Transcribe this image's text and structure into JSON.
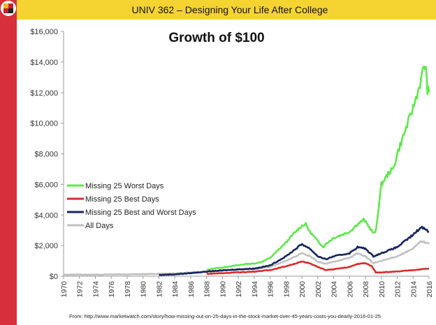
{
  "header": {
    "title": "UNIV 362 – Designing Your Life After College",
    "logo_icon": "university-seal-icon"
  },
  "source": "From: http://www.marketwatch.com/story/how-missing-out-on-25-days-in-the-stock-market-over-45-years-costs-you-dearly-2016-01-25",
  "colors": {
    "header_bg": "#f5d331",
    "sidebar": "#d6303a"
  },
  "chart_data": {
    "type": "line",
    "title": "Growth of $100",
    "xlabel": "",
    "ylabel": "",
    "xlim": [
      1970,
      2016
    ],
    "ylim": [
      0,
      16000
    ],
    "grid": false,
    "legend_position": "center-left",
    "x_ticks": [
      "1970",
      "1972",
      "1974",
      "1976",
      "1978",
      "1980",
      "1982",
      "1984",
      "1986",
      "1988",
      "1990",
      "1992",
      "1994",
      "1996",
      "1998",
      "2000",
      "2002",
      "2004",
      "2006",
      "2008",
      "2010",
      "2012",
      "2014",
      "2016"
    ],
    "y_ticks": [
      "$0",
      "$2,000",
      "$4,000",
      "$6,000",
      "$8,000",
      "$10,000",
      "$12,000",
      "$14,000",
      "$16,000"
    ],
    "y_tick_values": [
      0,
      2000,
      4000,
      6000,
      8000,
      10000,
      12000,
      14000,
      16000
    ],
    "series": [
      {
        "name": "Missing 25 Worst Days",
        "color": "#5ee84a",
        "x": [
          1988,
          1989,
          1990,
          1991,
          1992,
          1993,
          1994,
          1995,
          1996,
          1997,
          1998,
          1999,
          2000,
          2000.5,
          2001,
          2002,
          2002.7,
          2003,
          2004,
          2005,
          2006,
          2007,
          2007.8,
          2008.5,
          2009,
          2009.3,
          2010,
          2011,
          2011.5,
          2012,
          2013,
          2014,
          2015,
          2015.4,
          2015.6,
          2015.8,
          2016
        ],
        "values": [
          400,
          520,
          560,
          650,
          720,
          800,
          820,
          950,
          1200,
          1700,
          2200,
          2800,
          3300,
          3400,
          2900,
          2300,
          1900,
          2100,
          2500,
          2700,
          2900,
          3400,
          3700,
          3200,
          2800,
          2900,
          6000,
          6800,
          7000,
          8000,
          9500,
          11000,
          12800,
          13800,
          13600,
          12200,
          12000
        ]
      },
      {
        "name": "Missing 25 Best Days",
        "color": "#d92c2c",
        "x": [
          1988,
          1990,
          1992,
          1994,
          1996,
          1998,
          2000,
          2001,
          2002,
          2003,
          2004,
          2006,
          2007,
          2008,
          2008.8,
          2009.3,
          2010,
          2012,
          2014,
          2016
        ],
        "values": [
          150,
          200,
          250,
          300,
          400,
          650,
          950,
          850,
          600,
          400,
          450,
          600,
          800,
          850,
          650,
          250,
          250,
          300,
          400,
          500
        ]
      },
      {
        "name": "Missing 25 Best and Worst Days",
        "color": "#14255e",
        "x": [
          1982,
          1984,
          1986,
          1988,
          1990,
          1992,
          1994,
          1996,
          1998,
          2000,
          2001,
          2002,
          2003,
          2004,
          2006,
          2007,
          2008,
          2009,
          2010,
          2011,
          2012,
          2013,
          2014,
          2015,
          2015.6,
          2016
        ],
        "values": [
          80,
          120,
          200,
          300,
          380,
          450,
          500,
          700,
          1300,
          2100,
          1800,
          1300,
          1100,
          1300,
          1500,
          1900,
          1800,
          1300,
          1500,
          1700,
          1900,
          2300,
          2700,
          3200,
          3100,
          2900
        ]
      },
      {
        "name": "All Days",
        "color": "#c0c0c0",
        "x": [
          1970,
          1972,
          1974,
          1976,
          1978,
          1980,
          1982,
          1984,
          1986,
          1988,
          1990,
          1992,
          1994,
          1996,
          1998,
          2000,
          2001,
          2002,
          2003,
          2004,
          2006,
          2007,
          2008,
          2009,
          2010,
          2012,
          2014,
          2015,
          2015.6,
          2016
        ],
        "values": [
          100,
          110,
          90,
          120,
          110,
          140,
          150,
          180,
          250,
          300,
          350,
          420,
          450,
          600,
          1000,
          1500,
          1300,
          950,
          800,
          950,
          1200,
          1500,
          1300,
          850,
          1000,
          1300,
          1800,
          2300,
          2200,
          2100
        ]
      }
    ]
  }
}
